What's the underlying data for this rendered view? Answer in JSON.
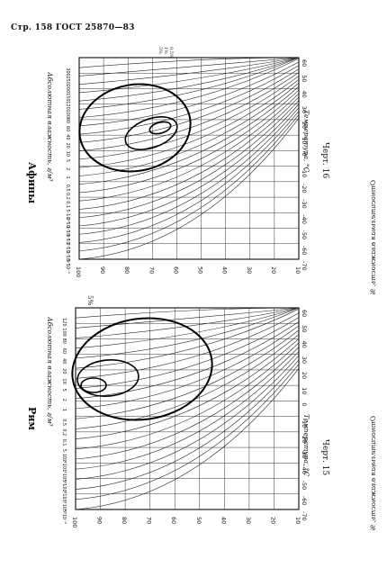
{
  "header": {
    "text": "Стр. 158 ГОСТ 25870—83"
  },
  "charts": [
    {
      "city": "Афины",
      "figure": "Черт. 16",
      "xlabel": "Температура, °C",
      "ylabel": "Относительная влажность, %",
      "abs_label": "Абсолютная влажность, г/м³",
      "corner_note": "0,5%\n1%\n5%",
      "x_ticks": [
        "-70",
        "-60",
        "-50",
        "-40",
        "-30",
        "-20",
        "-10",
        "0",
        "10",
        "20",
        "30",
        "40",
        "50",
        "60"
      ],
      "y_ticks": [
        "100",
        "90",
        "80",
        "70",
        "60",
        "50",
        "40",
        "30",
        "20",
        "10"
      ],
      "abs_ticks": [
        "5·10⁻⁴",
        "1·10⁻³",
        "2·10⁻³",
        "5·10⁻³",
        "1·10⁻²",
        "2·10⁻²",
        "5·10⁻²",
        "0,1",
        "0,2",
        "0,5",
        "1",
        "2",
        "5",
        "10",
        "20",
        "40",
        "60",
        "80",
        "100",
        "120",
        "150",
        "200",
        "250",
        "300"
      ]
    },
    {
      "city": "Рим",
      "figure": "Черт. 15",
      "xlabel": "Температура, °C",
      "ylabel": "Относительная влажность, %",
      "abs_label": "Абсолютная влажность, г/м³",
      "corner_note": "5%",
      "x_ticks": [
        "-70",
        "-60",
        "-50",
        "-40",
        "-30",
        "-20",
        "-10",
        "0",
        "10",
        "20",
        "30",
        "40",
        "50",
        "60"
      ],
      "y_ticks": [
        "100",
        "90",
        "80",
        "70",
        "60",
        "50",
        "40",
        "30",
        "20",
        "10"
      ],
      "abs_ticks": [
        "5·10⁻⁴",
        "1·10⁻³",
        "2·10⁻³",
        "5·10⁻³",
        "1·10⁻²",
        "2·10⁻²",
        "5·10⁻²",
        "0,1",
        "0,2",
        "0,5",
        "1",
        "2",
        "5",
        "10",
        "20",
        "40",
        "60",
        "80",
        "100",
        "120"
      ]
    }
  ]
}
